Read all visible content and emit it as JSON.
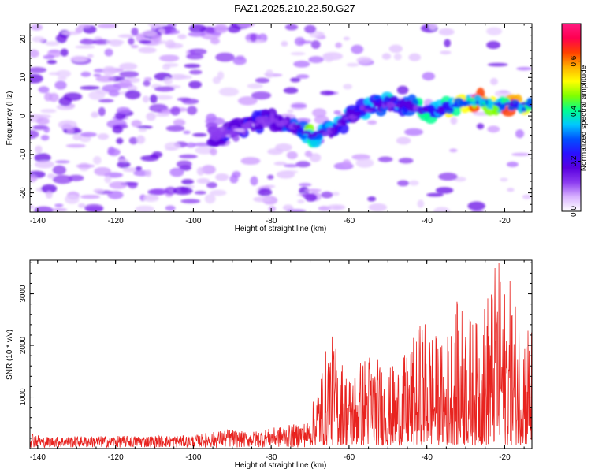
{
  "title": "PAZ1.2025.210.22.50.G27",
  "chart_data": [
    {
      "type": "heatmap",
      "xlabel": "Height of straight line (km)",
      "ylabel": "Frequency (Hz)",
      "xlim": [
        -142,
        -13
      ],
      "ylim": [
        -25,
        24
      ],
      "xticks": [
        -140,
        -120,
        -100,
        -80,
        -60,
        -40,
        -20
      ],
      "yticks": [
        -20,
        -10,
        0,
        10,
        20
      ],
      "colorbar": {
        "label": "Normalized spectral amplitude",
        "range": [
          0.0,
          0.75
        ],
        "ticks": [
          0.0,
          0.2,
          0.4,
          0.6
        ],
        "colors": [
          "#ffffff",
          "#d9b3ff",
          "#8c3cf0",
          "#5a00e0",
          "#2a10ff",
          "#0050ff",
          "#00c8ff",
          "#00ff90",
          "#80ff00",
          "#ffff00",
          "#ffb000",
          "#ff4000",
          "#ff0050",
          "#ff1a80"
        ]
      },
      "ridge": [
        {
          "x": -92,
          "y": -5,
          "amp": 0.2
        },
        {
          "x": -82,
          "y": -1,
          "amp": 0.22
        },
        {
          "x": -76,
          "y": -2,
          "amp": 0.25
        },
        {
          "x": -70,
          "y": -5,
          "amp": 0.45
        },
        {
          "x": -64,
          "y": -4,
          "amp": 0.3
        },
        {
          "x": -58,
          "y": 1,
          "amp": 0.3
        },
        {
          "x": -52,
          "y": 3,
          "amp": 0.35
        },
        {
          "x": -45,
          "y": 3,
          "amp": 0.3
        },
        {
          "x": -38,
          "y": 1,
          "amp": 0.4
        },
        {
          "x": -32,
          "y": 3,
          "amp": 0.45
        },
        {
          "x": -27,
          "y": 4,
          "amp": 0.65
        },
        {
          "x": -21,
          "y": 3,
          "amp": 0.5
        },
        {
          "x": -15,
          "y": 3,
          "amp": 0.55
        }
      ]
    },
    {
      "type": "line",
      "xlabel": "Height of straight line (km)",
      "ylabel": "SNR (10 * v/v)",
      "xlim": [
        -142,
        -13
      ],
      "ylim": [
        0,
        3650
      ],
      "xticks": [
        -140,
        -120,
        -100,
        -80,
        -60,
        -40,
        -20
      ],
      "yticks": [
        1000,
        2000,
        3000
      ],
      "color": "#e8231f",
      "envelope": [
        {
          "x": -142,
          "y": 400
        },
        {
          "x": -139,
          "y": 250
        },
        {
          "x": -100,
          "y": 280
        },
        {
          "x": -91,
          "y": 420
        },
        {
          "x": -86,
          "y": 350
        },
        {
          "x": -70,
          "y": 600
        },
        {
          "x": -67,
          "y": 1600
        },
        {
          "x": -65,
          "y": 2250
        },
        {
          "x": -60,
          "y": 1400
        },
        {
          "x": -55,
          "y": 1900
        },
        {
          "x": -50,
          "y": 1500
        },
        {
          "x": -45,
          "y": 1800
        },
        {
          "x": -41,
          "y": 2550
        },
        {
          "x": -36,
          "y": 2000
        },
        {
          "x": -32,
          "y": 2850
        },
        {
          "x": -27,
          "y": 2400
        },
        {
          "x": -22,
          "y": 3650
        },
        {
          "x": -19,
          "y": 3300
        },
        {
          "x": -16,
          "y": 2700
        },
        {
          "x": -13,
          "y": 2450
        }
      ]
    }
  ]
}
